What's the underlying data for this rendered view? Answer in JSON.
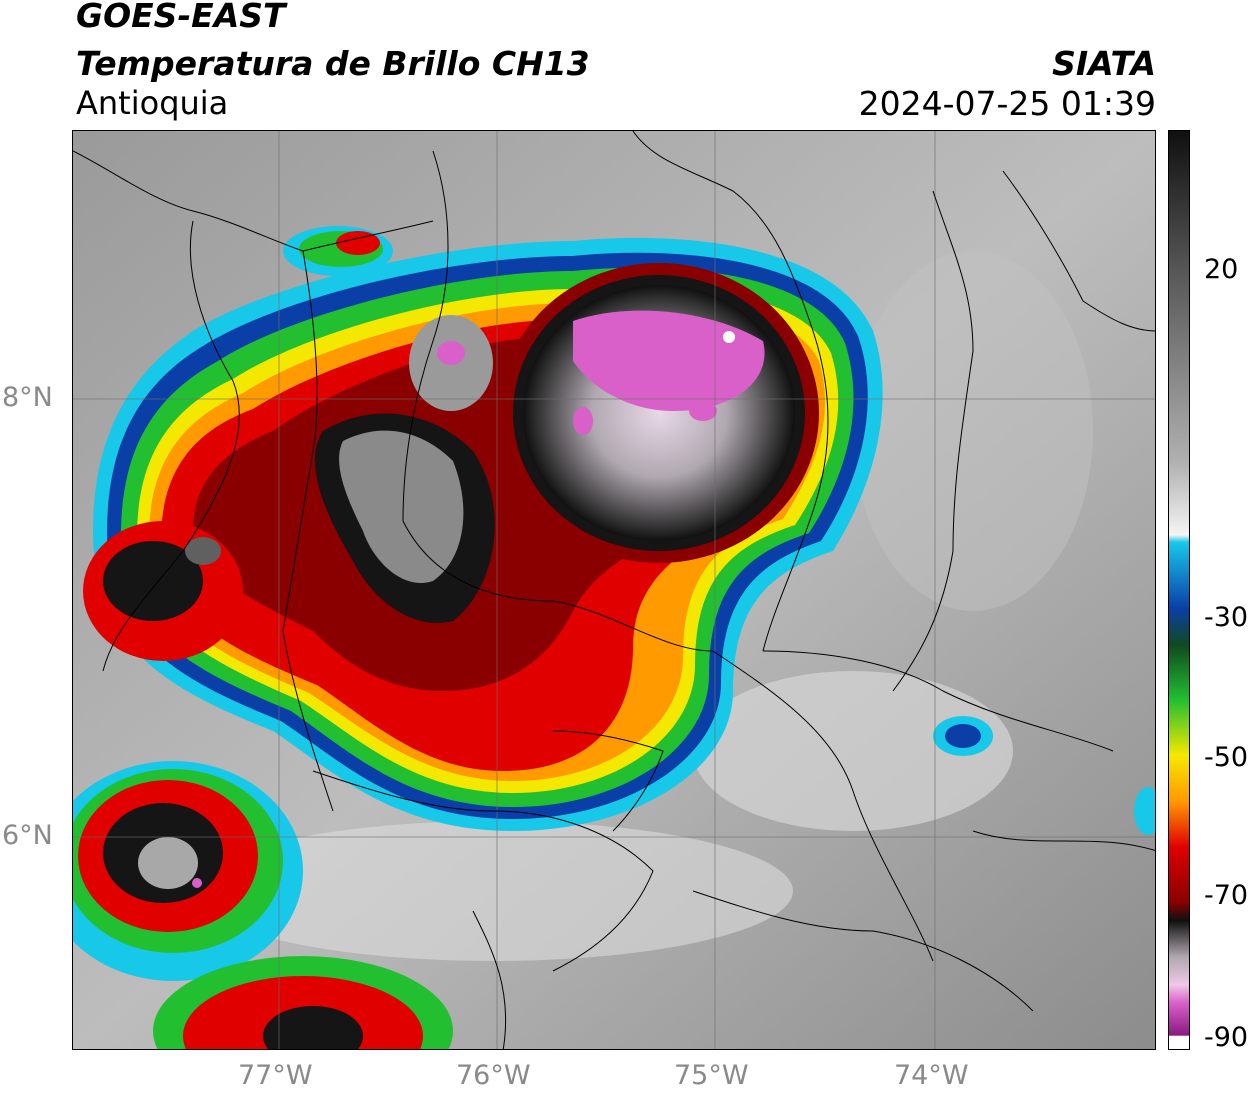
{
  "header": {
    "satellite": "GOES-EAST",
    "product": "Temperatura de Brillo CH13",
    "region": "Antioquia",
    "organization": "SIATA",
    "datetime": "2024-07-25 01:39"
  },
  "axes": {
    "lon_labels": [
      "77°W",
      "76°W",
      "75°W",
      "74°W"
    ],
    "lat_labels": [
      "8°N",
      "6°N"
    ]
  },
  "colorbar": {
    "ticks": [
      "20",
      "-30",
      "-50",
      "-70",
      "-90"
    ]
  },
  "colors": {
    "magenta": "#d860c8",
    "black_core": "#151515",
    "dark_red": "#8a0000",
    "red": "#e00000",
    "orange": "#ff9a00",
    "yellow": "#f5e800",
    "green": "#22c030",
    "blue": "#0a3fa8",
    "cyan": "#18c8e8",
    "background_gray": "#a8a8a8"
  }
}
